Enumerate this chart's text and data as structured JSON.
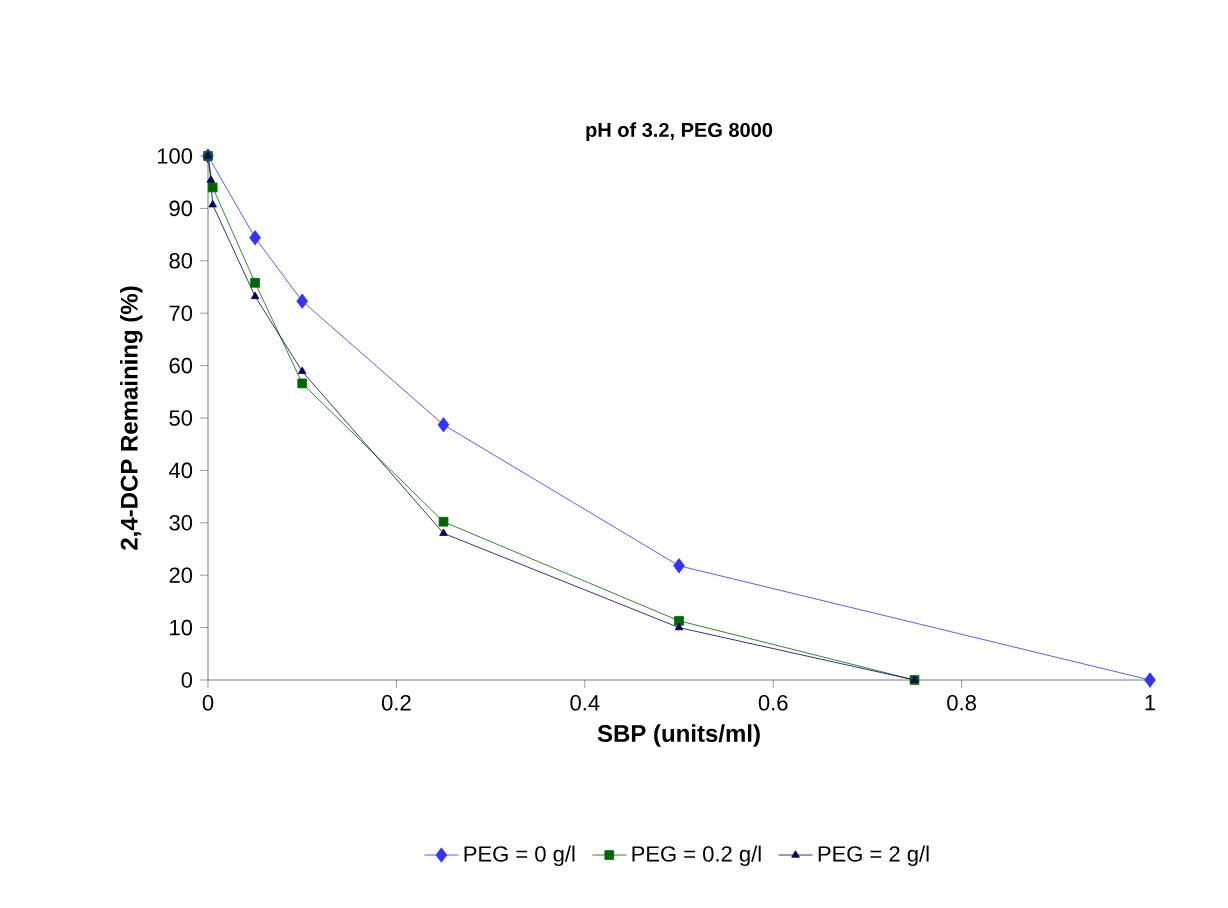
{
  "chart_data": {
    "type": "line",
    "title": "pH of 3.2, PEG 8000",
    "xlabel": "SBP (units/ml)",
    "ylabel": "2,4-DCP Remaining (%)",
    "xlim": [
      0,
      1
    ],
    "xticks": [
      0,
      0.2,
      0.4,
      0.6,
      0.8,
      1
    ],
    "ylim": [
      0,
      100
    ],
    "yticks": [
      0,
      10,
      20,
      30,
      40,
      50,
      60,
      70,
      80,
      90,
      100
    ],
    "grid": false,
    "legend": "bottom",
    "series": [
      {
        "name": "PEG = 0 g/l",
        "color": "#3333ff",
        "marker": "diamond",
        "x": [
          0,
          0.05,
          0.1,
          0.25,
          0.5,
          1
        ],
        "values": [
          100,
          84.4,
          72.3,
          48.7,
          21.8,
          0
        ]
      },
      {
        "name": "PEG = 0.2 g/l",
        "color": "#006600",
        "marker": "square",
        "x": [
          0,
          0.005,
          0.05,
          0.1,
          0.25,
          0.5,
          0.75
        ],
        "values": [
          100,
          94,
          75.8,
          56.6,
          30.2,
          11.3,
          0
        ]
      },
      {
        "name": "PEG = 2 g/l",
        "color": "#000066",
        "marker": "triangle",
        "x": [
          0,
          0.003,
          0.005,
          0.05,
          0.1,
          0.25,
          0.5,
          0.75
        ],
        "values": [
          100,
          95.4,
          90.7,
          73.2,
          58.9,
          28,
          10,
          0
        ]
      }
    ]
  }
}
